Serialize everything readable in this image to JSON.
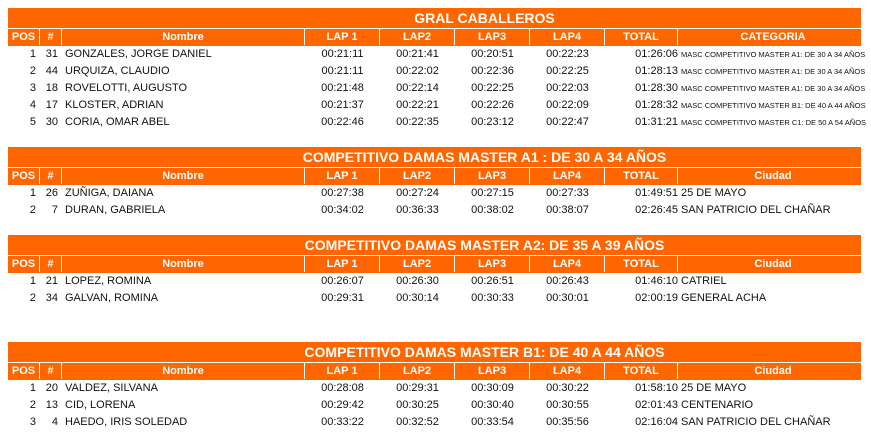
{
  "accent_color": "#ff6600",
  "sections": [
    {
      "title": "GRAL CABALLEROS",
      "extra_header": "CATEGORIA",
      "small_extra": true,
      "headers": [
        "POS",
        "#",
        "Nombre",
        "LAP 1",
        "LAP2",
        "LAP3",
        "LAP4",
        "TOTAL"
      ],
      "rows": [
        [
          "1",
          "31",
          "GONZALES, JORGE DANIEL",
          "00:21:11",
          "00:21:41",
          "00:20:51",
          "00:22:23",
          "01:26:06",
          "MASC COMPETITIVO MASTER A1: DE 30 A 34 AÑOS"
        ],
        [
          "2",
          "44",
          "URQUIZA, CLAUDIO",
          "00:21:11",
          "00:22:02",
          "00:22:36",
          "00:22:25",
          "01:28:13",
          "MASC COMPETITIVO MASTER A1: DE 30 A 34 AÑOS"
        ],
        [
          "3",
          "18",
          "ROVELOTTI, AUGUSTO",
          "00:21:48",
          "00:22:14",
          "00:22:25",
          "00:22:03",
          "01:28:30",
          "MASC COMPETITIVO MASTER A1: DE 30 A 34 AÑOS"
        ],
        [
          "4",
          "17",
          "KLOSTER, ADRIAN",
          "00:21:37",
          "00:22:21",
          "00:22:26",
          "00:22:09",
          "01:28:32",
          "MASC COMPETITIVO MASTER B1: DE 40 A 44 AÑOS"
        ],
        [
          "5",
          "30",
          "CORIA, OMAR ABEL",
          "00:22:46",
          "00:22:35",
          "00:23:12",
          "00:22:47",
          "01:31:21",
          "MASC COMPETITIVO MASTER C1: DE 50 A 54 AÑOS"
        ]
      ]
    },
    {
      "title": "COMPETITIVO DAMAS MASTER A1 : DE 30 A 34 AÑOS",
      "extra_header": "Ciudad",
      "headers": [
        "POS",
        "#",
        "Nombre",
        "LAP 1",
        "LAP2",
        "LAP3",
        "LAP4",
        "TOTAL"
      ],
      "rows": [
        [
          "1",
          "26",
          "ZUÑIGA, DAIANA",
          "00:27:38",
          "00:27:24",
          "00:27:15",
          "00:27:33",
          "01:49:51",
          "25 DE MAYO"
        ],
        [
          "2",
          "7",
          "DURAN, GABRIELA",
          "00:34:02",
          "00:36:33",
          "00:38:02",
          "00:38:07",
          "02:26:45",
          "SAN PATRICIO DEL CHAÑAR"
        ]
      ]
    },
    {
      "title": "COMPETITIVO DAMAS MASTER A2: DE 35 A 39 AÑOS",
      "extra_header": "Ciudad",
      "headers": [
        "POS",
        "#",
        "Nombre",
        "LAP 1",
        "LAP2",
        "LAP3",
        "LAP4",
        "TOTAL"
      ],
      "rows": [
        [
          "1",
          "21",
          "LOPEZ, ROMINA",
          "00:26:07",
          "00:26:30",
          "00:26:51",
          "00:26:43",
          "01:46:10",
          "CATRIEL"
        ],
        [
          "2",
          "34",
          "GALVAN, ROMINA",
          "00:29:31",
          "00:30:14",
          "00:30:33",
          "00:30:01",
          "02:00:19",
          "GENERAL ACHA"
        ]
      ]
    },
    {
      "title": "COMPETITIVO DAMAS MASTER B1: DE 40 A 44 AÑOS",
      "extra_header": "Ciudad",
      "headers": [
        "POS",
        "#",
        "Nombre",
        "LAP 1",
        "LAP2",
        "LAP3",
        "LAP4",
        "TOTAL"
      ],
      "rows": [
        [
          "1",
          "20",
          "VALDEZ, SILVANA",
          "00:28:08",
          "00:29:31",
          "00:30:09",
          "00:30:22",
          "01:58:10",
          "25 DE MAYO"
        ],
        [
          "2",
          "13",
          "CID, LORENA",
          "00:29:42",
          "00:30:25",
          "00:30:40",
          "00:30:55",
          "02:01:43",
          "CENTENARIO"
        ],
        [
          "3",
          "4",
          "HAEDO, IRIS SOLEDAD",
          "00:33:22",
          "00:32:52",
          "00:33:54",
          "00:35:56",
          "02:16:04",
          "SAN PATRICIO DEL CHAÑAR"
        ]
      ]
    }
  ]
}
